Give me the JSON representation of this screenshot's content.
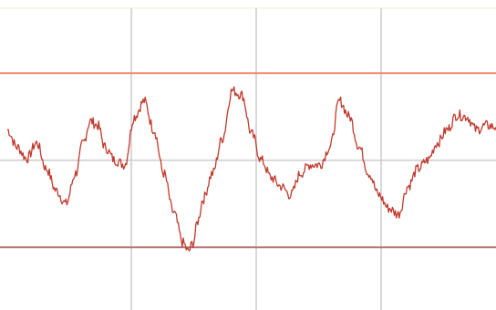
{
  "chart_data": {
    "type": "line",
    "title": "",
    "xlabel": "",
    "ylabel": "",
    "grid": true,
    "x_gridlines": 4,
    "y_gridlines": 1,
    "threshold_lines": [
      {
        "name": "",
        "value": 1.0,
        "color": "#f08a6a"
      },
      {
        "name": "",
        "value": -1.0,
        "color": "#b87470"
      }
    ],
    "ylim": [
      -1.72,
      1.84
    ],
    "xlim": [
      0,
      100
    ],
    "series": [
      {
        "name": "",
        "color": "#c0392b",
        "x": [
          0,
          2,
          4,
          6,
          8,
          10,
          12,
          14,
          15.5,
          17,
          18.5,
          20,
          22,
          24,
          26,
          28,
          30,
          32,
          34,
          36,
          37,
          38,
          39,
          40,
          42,
          44,
          46,
          48,
          50,
          52,
          54,
          56,
          58,
          60,
          62,
          64,
          66,
          68,
          70,
          72,
          74,
          76,
          78,
          80,
          82,
          84,
          86,
          88,
          90,
          92,
          94,
          96,
          98,
          100
        ],
        "values": [
          0.35,
          0.15,
          0.02,
          0.2,
          -0.1,
          -0.35,
          -0.5,
          -0.15,
          0.2,
          0.45,
          0.4,
          0.15,
          0.0,
          -0.05,
          0.5,
          0.68,
          0.35,
          -0.15,
          -0.6,
          -0.95,
          -1.05,
          -0.95,
          -0.7,
          -0.45,
          -0.15,
          0.25,
          0.8,
          0.75,
          0.3,
          0.0,
          -0.2,
          -0.3,
          -0.4,
          -0.15,
          -0.05,
          -0.05,
          0.15,
          0.68,
          0.5,
          0.15,
          -0.15,
          -0.4,
          -0.55,
          -0.62,
          -0.3,
          -0.1,
          0.0,
          0.2,
          0.35,
          0.52,
          0.5,
          0.35,
          0.4,
          0.38
        ]
      }
    ]
  },
  "colors": {
    "grid": "#cccccc",
    "top_border": "#ececd4",
    "line": "#c0392b"
  }
}
